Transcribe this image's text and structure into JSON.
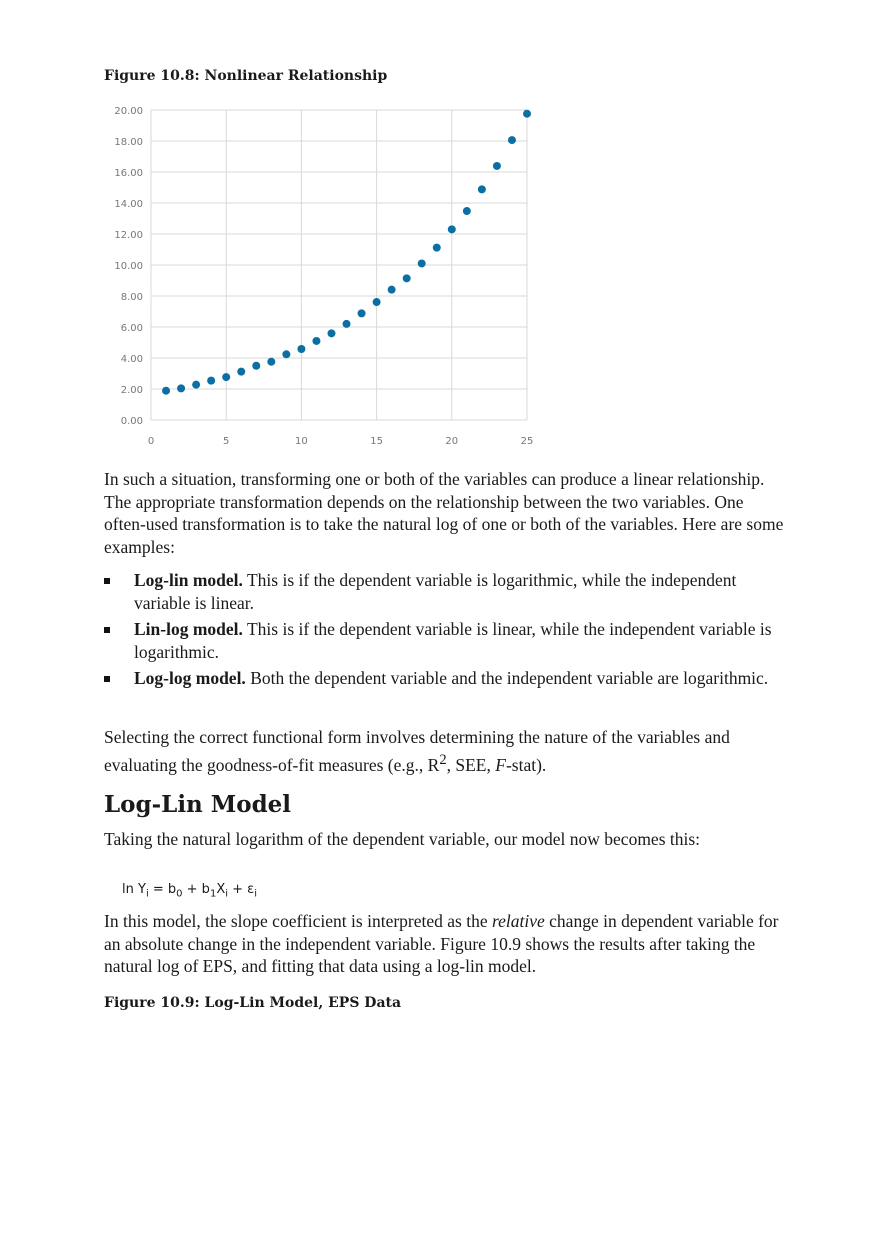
{
  "figure1_caption": "Figure 10.8: Nonlinear Relationship",
  "chart_data": {
    "type": "scatter",
    "title": "",
    "xlabel": "",
    "ylabel": "",
    "xlim": [
      0,
      25
    ],
    "ylim": [
      0,
      20
    ],
    "grid": true,
    "x_ticks": [
      "0",
      "5",
      "10",
      "15",
      "20",
      "25"
    ],
    "y_ticks": [
      "0.00",
      "2.00",
      "4.00",
      "6.00",
      "8.00",
      "10.00",
      "12.00",
      "14.00",
      "16.00",
      "18.00",
      "20.00"
    ],
    "color": "#0b6fa4",
    "x": [
      1,
      2,
      3,
      4,
      5,
      6,
      7,
      8,
      9,
      10,
      11,
      12,
      13,
      14,
      15,
      16,
      17,
      18,
      19,
      20,
      21,
      22,
      23,
      24,
      25
    ],
    "y": [
      1.89,
      2.04,
      2.28,
      2.54,
      2.77,
      3.12,
      3.5,
      3.76,
      4.24,
      4.58,
      5.1,
      5.59,
      6.2,
      6.88,
      7.61,
      8.41,
      9.14,
      10.1,
      11.12,
      12.3,
      13.48,
      14.88,
      16.39,
      18.06,
      19.76
    ]
  },
  "para1": "In such a situation, transforming one or both of the variables can produce a linear relationship. The appropriate transformation depends on the relationship between the two variables. One often-used transformation is to take the natural log of one or both of the variables. Here are some examples:",
  "bullets": [
    {
      "term": "Log-lin model.",
      "text": " This is if the dependent variable is logarithmic, while the independent variable is linear."
    },
    {
      "term": "Lin-log model.",
      "text": " This is if the dependent variable is linear, while the independent variable is logarithmic."
    },
    {
      "term": "Log-log model.",
      "text": " Both the dependent variable and the independent variable are logarithmic."
    }
  ],
  "para2_a": "Selecting the correct functional form involves determining the nature of the variables and evaluating the goodness-of-fit measures (e.g., R",
  "para2_sup": "2",
  "para2_b": ", SEE, ",
  "para2_f": "F",
  "para2_c": "-stat).",
  "heading": "Log-Lin Model",
  "para3": "Taking the natural logarithm of the dependent variable, our model now becomes this:",
  "equation": {
    "a": "ln Y",
    "s1": "i",
    "b": " = b",
    "s2": "0",
    "c": " + b",
    "s3": "1",
    "d": "X",
    "s4": "i",
    "e": " + ε",
    "s5": "i"
  },
  "para4_a": "In this model, the slope coefficient is interpreted as the ",
  "para4_em": "relative",
  "para4_b": " change in dependent variable for an absolute change in the independent variable. Figure 10.9 shows the results after taking the natural log of EPS, and fitting that data using a log-lin model.",
  "figure2_caption": "Figure 10.9: Log-Lin Model, EPS Data"
}
